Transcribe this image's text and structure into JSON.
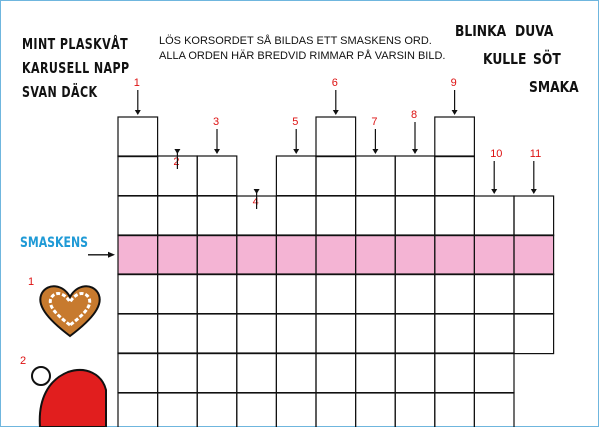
{
  "instructions": {
    "line1": "LÖS KORSORDET SÅ BILDAS ETT SMASKENS ORD.",
    "line2": "ALLA ORDEN HÄR BREDVID RIMMAR PÅ VARSIN BILD."
  },
  "word_bank_left": [
    "MINT PLASKVÅT",
    "KARUSELL NAPP",
    "SVAN DÄCK"
  ],
  "word_bank_right": [
    "BLINKA",
    "DUVA",
    "KULLE",
    "SÖT",
    "SMAKA"
  ],
  "solution_label": "SMASKENS",
  "clue_numbers": [
    "1",
    "2",
    "3",
    "4",
    "5",
    "6",
    "7",
    "8",
    "9",
    "10",
    "11"
  ],
  "picture_numbers": [
    "1",
    "2"
  ],
  "picture_icons": [
    "gingerbread-heart-icon",
    "santa-hat-icon"
  ],
  "colors": {
    "highlight_row": "#f4b4d4",
    "number_red": "#dd1111",
    "label_blue": "#1f9ad6"
  }
}
